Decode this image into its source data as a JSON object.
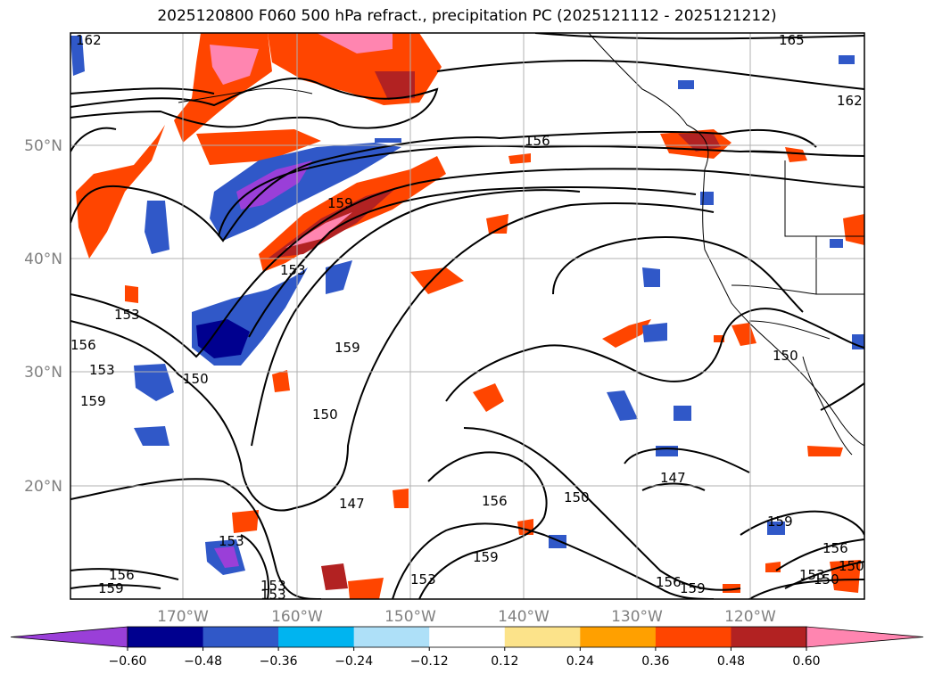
{
  "title": "2025120800 F060 500 hPa refract., precipitation PC (2025121112 - 2025121212)",
  "lat_labels": [
    "50°N",
    "40°N",
    "30°N",
    "20°N"
  ],
  "lon_labels": [
    "170°W",
    "160°W",
    "150°W",
    "140°W",
    "130°W",
    "120°W"
  ],
  "colorbar": {
    "ticks": [
      "−0.60",
      "−0.48",
      "−0.36",
      "−0.24",
      "−0.12",
      "0.12",
      "0.24",
      "0.36",
      "0.48",
      "0.60"
    ],
    "colors": [
      "#9a3fd8",
      "#00008f",
      "#3058c8",
      "#00b4f0",
      "#aee0f8",
      "#ffffff",
      "#fce38a",
      "#ffa000",
      "#ff4500",
      "#b22222",
      "#ff85b0"
    ]
  },
  "contour_labels": [
    "162",
    "165",
    "162",
    "156",
    "159",
    "153",
    "153",
    "156",
    "153",
    "159",
    "159",
    "150",
    "150",
    "150",
    "147",
    "156",
    "150",
    "153",
    "147",
    "153",
    "159",
    "156",
    "153",
    "159",
    "156",
    "159",
    "153",
    "150",
    "159",
    "156",
    "153",
    "150"
  ]
}
